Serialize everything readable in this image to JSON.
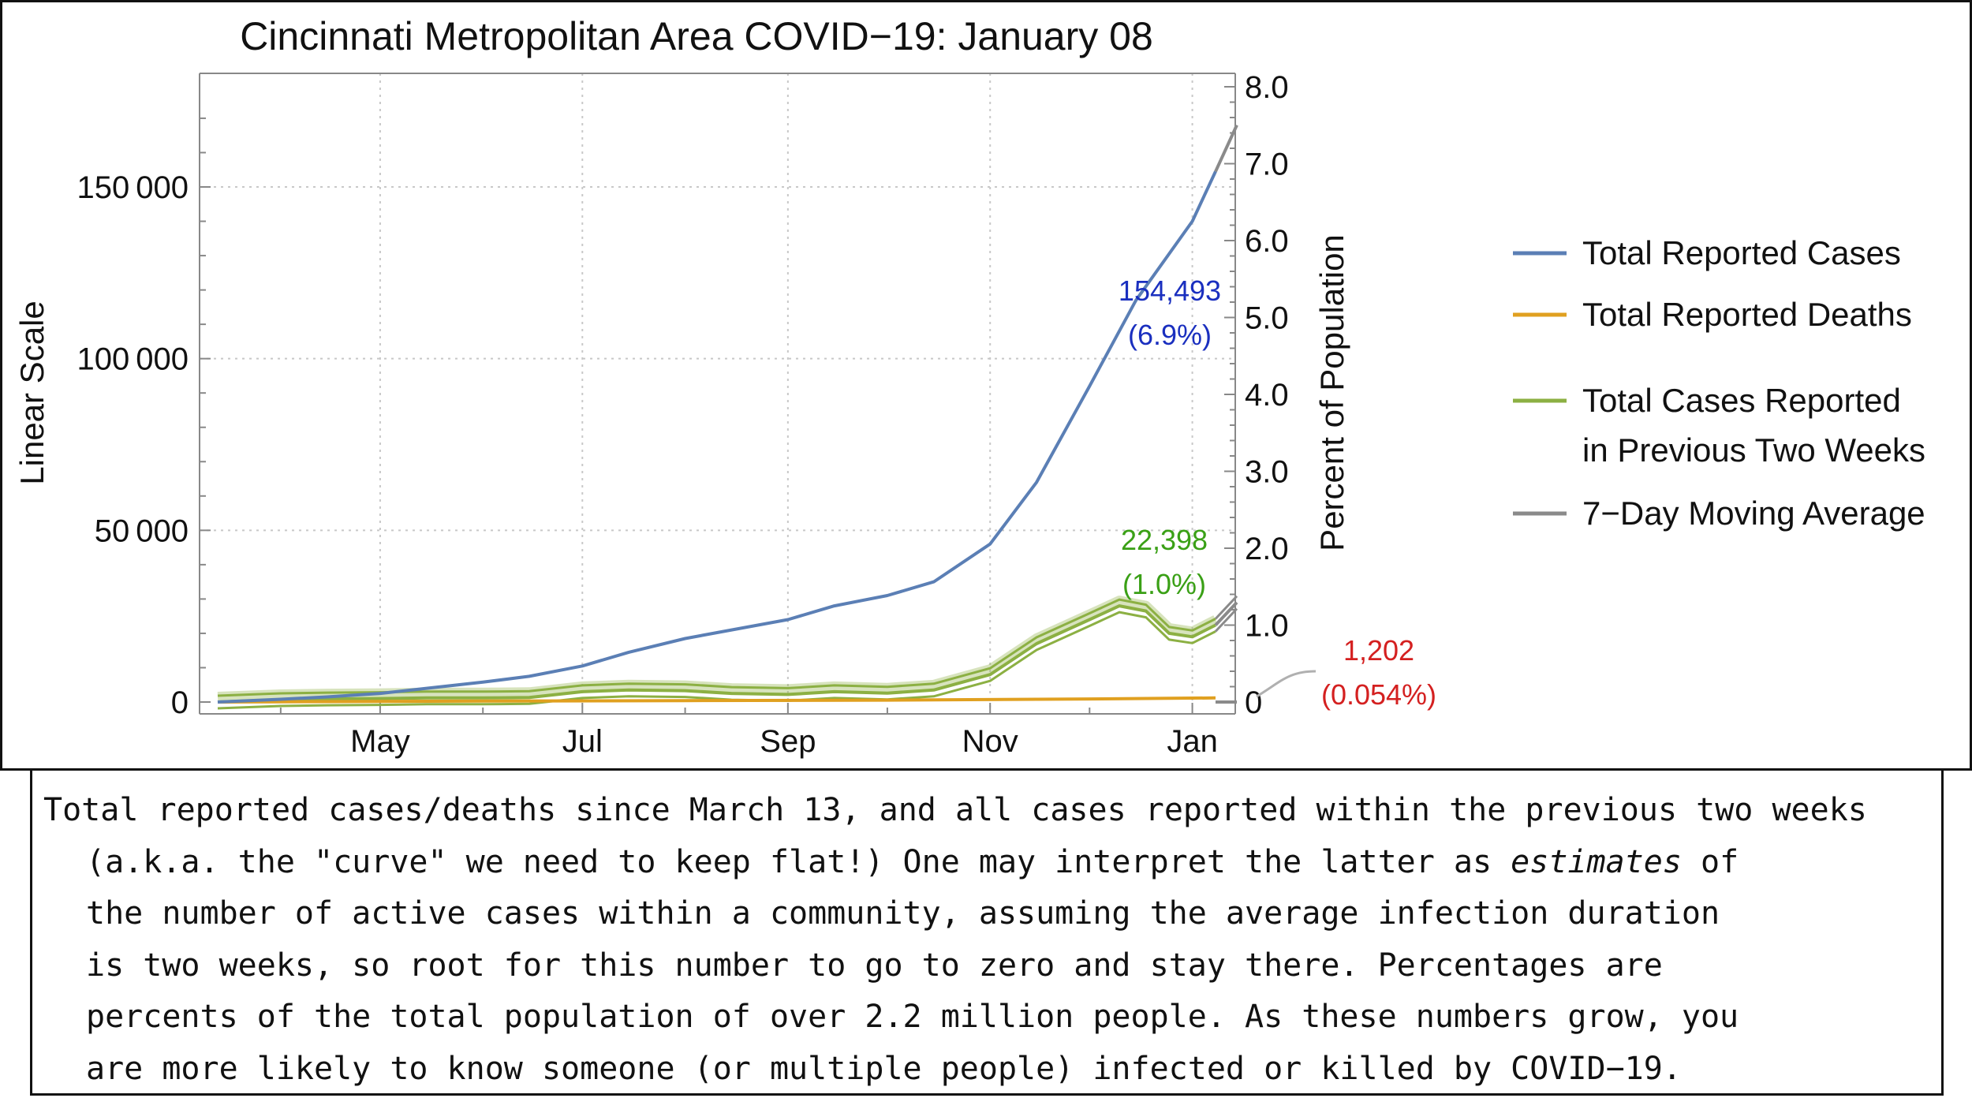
{
  "chart_data": {
    "type": "line",
    "title": "Cincinnati Metropolitan Area COVID−19: January 08",
    "ylabel_left": "Linear Scale",
    "ylabel_right": "Percent of Population",
    "x_ticks": [
      "May",
      "Jul",
      "Sep",
      "Nov",
      "Jan"
    ],
    "y_ticks_left": [
      "0",
      "50 000",
      "100 000",
      "150 000"
    ],
    "y_ticks_right": [
      "0",
      "1.0",
      "2.0",
      "3.0",
      "4.0",
      "5.0",
      "6.0",
      "7.0",
      "8.0"
    ],
    "xlim": [
      "2020-03-13",
      "2021-01-08"
    ],
    "ylim_left": [
      0,
      180000
    ],
    "ylim_right_percent": [
      0,
      8.1
    ],
    "grid": true,
    "legend_position": "right",
    "series": [
      {
        "name": "Total Reported Cases",
        "color": "#5b7fb5",
        "x": [
          "2020-03-13",
          "2020-04-01",
          "2020-04-15",
          "2020-05-01",
          "2020-05-15",
          "2020-06-01",
          "2020-06-15",
          "2020-07-01",
          "2020-07-15",
          "2020-08-01",
          "2020-08-15",
          "2020-09-01",
          "2020-09-15",
          "2020-10-01",
          "2020-10-15",
          "2020-11-01",
          "2020-11-15",
          "2020-12-01",
          "2020-12-15",
          "2021-01-01",
          "2021-01-08"
        ],
        "values": [
          0,
          800,
          1500,
          2500,
          4000,
          5800,
          7500,
          10500,
          14500,
          18500,
          21000,
          24000,
          28000,
          31000,
          35000,
          46000,
          64000,
          92000,
          117000,
          140000,
          154493
        ]
      },
      {
        "name": "Total Reported Deaths",
        "color": "#e0a020",
        "x": [
          "2020-03-13",
          "2020-04-15",
          "2020-06-01",
          "2020-08-01",
          "2020-10-01",
          "2020-12-01",
          "2021-01-08"
        ],
        "values": [
          0,
          120,
          280,
          420,
          560,
          900,
          1202
        ]
      },
      {
        "name": "Total Cases Reported in Previous Two Weeks",
        "color": "#8cb043",
        "x": [
          "2020-03-13",
          "2020-04-01",
          "2020-04-15",
          "2020-05-01",
          "2020-05-15",
          "2020-06-01",
          "2020-06-15",
          "2020-07-01",
          "2020-07-15",
          "2020-08-01",
          "2020-08-15",
          "2020-09-01",
          "2020-09-15",
          "2020-10-01",
          "2020-10-15",
          "2020-11-01",
          "2020-11-15",
          "2020-12-01",
          "2020-12-10",
          "2020-12-18",
          "2020-12-25",
          "2021-01-01",
          "2021-01-08"
        ],
        "values": [
          0,
          700,
          900,
          1000,
          1200,
          1200,
          1300,
          3000,
          3500,
          3300,
          2500,
          2200,
          3000,
          2600,
          3500,
          8000,
          17000,
          24000,
          28000,
          26500,
          20000,
          19000,
          22398
        ]
      }
    ],
    "moving_average": {
      "name": "7−Day Moving Average",
      "color": "#8a8a8a"
    },
    "annotations": {
      "cases_value": "154,493",
      "cases_pct": "(6.9%)",
      "cases_color": "#1a2fbf",
      "active_value": "22,398",
      "active_pct": "(1.0%)",
      "active_color": "#3aa016",
      "deaths_value": "1,202",
      "deaths_pct": "(0.054%)",
      "deaths_color": "#d42020"
    },
    "legend": [
      {
        "text": "Total Reported Cases",
        "color": "#5b7fb5"
      },
      {
        "text": "Total Reported Deaths",
        "color": "#e0a020"
      },
      {
        "text": "Total Cases Reported",
        "text2": "in Previous Two Weeks",
        "color": "#8cb043"
      },
      {
        "text": "7−Day Moving Average",
        "color": "#8a8a8a"
      }
    ]
  },
  "caption": {
    "line1": "Total reported cases/deaths since March 13, and all cases reported within the previous two weeks",
    "line2_pre": "(a.k.a. the \"curve\" we need to keep flat!) One may interpret the latter as ",
    "line2_em": "estimates",
    "line2_post": " of",
    "line3": "the number of active cases within a community, assuming the average infection duration",
    "line4": "is two weeks, so root for this number to go to zero and stay there. Percentages are",
    "line5": "percents of the total population of over 2.2 million people. As these numbers grow, you",
    "line6": "are more likely to know someone (or multiple people) infected or killed by COVID−19."
  }
}
